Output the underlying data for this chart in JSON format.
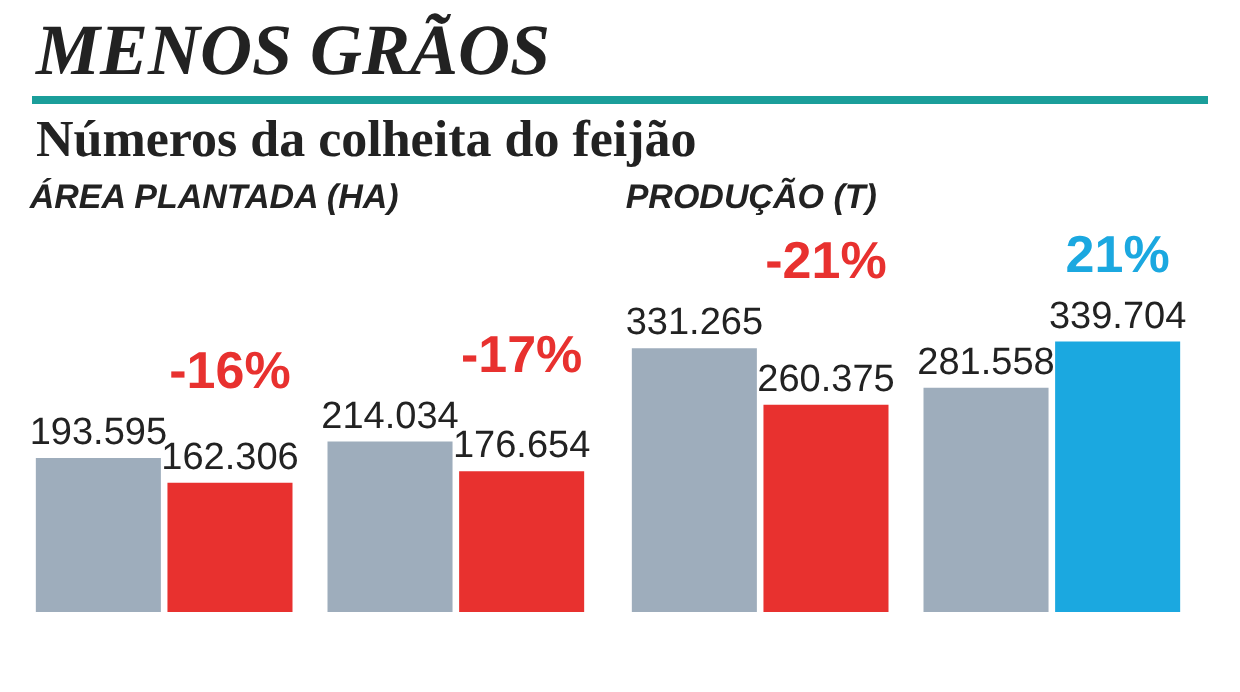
{
  "chart_data": [
    {
      "type": "other",
      "title": "MENOS GRÃOS",
      "subtitle": "Números da colheita do feijão"
    },
    {
      "type": "bar",
      "title": "ÁREA PLANTADA (HA)",
      "categories": [
        null,
        null
      ],
      "series": [
        {
          "color": "#9eadbc",
          "values": [
            193595,
            214034
          ],
          "value_labels": [
            "193.595",
            "214.034"
          ]
        },
        {
          "colors": [
            "#e8312f",
            "#e8312f"
          ],
          "values": [
            162306,
            176654
          ],
          "value_labels": [
            "162.306",
            "176.654"
          ]
        }
      ],
      "annotations": [
        "-16%",
        "-17%"
      ]
    },
    {
      "type": "bar",
      "title": "PRODUÇÃO (T)",
      "categories": [
        null,
        null
      ],
      "series": [
        {
          "color": "#9eadbc",
          "values": [
            331265,
            281558
          ],
          "value_labels": [
            "331.265",
            "281.558"
          ]
        },
        {
          "colors": [
            "#e8312f",
            "#1ba8e0"
          ],
          "values": [
            260375,
            339704
          ],
          "value_labels": [
            "260.375",
            "339.704"
          ]
        }
      ],
      "annotations": [
        "-21%",
        "21%"
      ]
    }
  ]
}
